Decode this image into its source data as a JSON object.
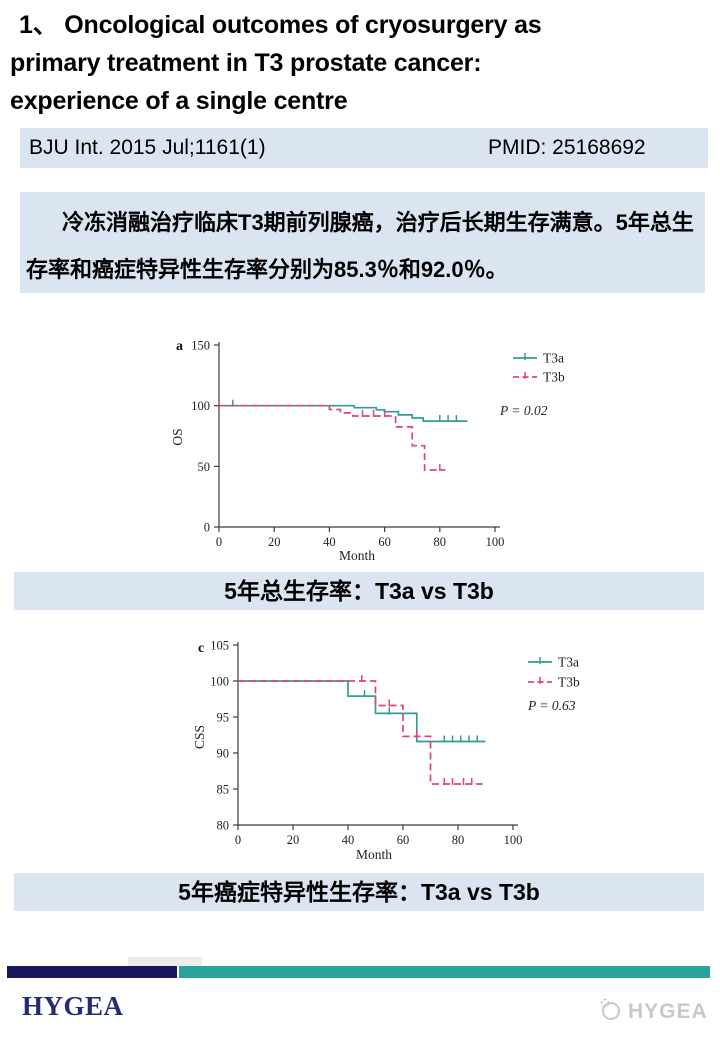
{
  "title": {
    "lines": [
      "1、 Oncological outcomes of cryosurgery as",
      "primary treatment in T3 prostate cancer:",
      "experience of a single centre"
    ]
  },
  "citation": {
    "journal": "BJU Int. 2015 Jul;1161(1)",
    "pmid": "PMID: 25168692"
  },
  "summary": {
    "text": "冷冻消融治疗临床T3期前列腺癌，治疗后长期生存满意。5年总生存率和癌症特异性生存率分别为85.3％和92.0％。"
  },
  "captions": {
    "os": "5年总生存率：T3a vs T3b",
    "css": "5年癌症特异性生存率：T3a vs T3b"
  },
  "colors": {
    "highlight_bg": "#dbe5f1",
    "t3a_teal": "#2f9e94",
    "t3b_pink": "#e5417d",
    "footer_navy": "#18185a",
    "footer_teal": "#2ba39c",
    "brand_navy": "#242b78",
    "watermark_gray": "#c9c9c9"
  },
  "chart_data": [
    {
      "type": "line",
      "subtype": "kaplan_meier_step",
      "panel_label": "a",
      "xlabel": "Month",
      "ylabel": "OS",
      "xlim": [
        0,
        100
      ],
      "ylim": [
        0,
        150
      ],
      "xticks": [
        0,
        20,
        40,
        60,
        80,
        100
      ],
      "yticks": [
        0,
        50,
        100,
        150
      ],
      "p_label": "P = 0.02",
      "legend_position": "upper-right-outside",
      "series": [
        {
          "name": "T3a",
          "color": "#2f9e94",
          "style": "solid",
          "points": [
            [
              0,
              100
            ],
            [
              49,
              100
            ],
            [
              49,
              98.3
            ],
            [
              57,
              98.3
            ],
            [
              57,
              96.6
            ],
            [
              60,
              96.6
            ],
            [
              60,
              95
            ],
            [
              65,
              95
            ],
            [
              65,
              92.4
            ],
            [
              70,
              92.4
            ],
            [
              70,
              89.8
            ],
            [
              74,
              89.8
            ],
            [
              74,
              87.3
            ],
            [
              90,
              87.3
            ]
          ],
          "censor_ticks": [
            [
              5,
              100
            ],
            [
              80,
              87.3
            ],
            [
              83,
              87.3
            ],
            [
              86,
              87.3
            ]
          ]
        },
        {
          "name": "T3b",
          "color": "#e5417d",
          "style": "dashed",
          "points": [
            [
              0,
              100
            ],
            [
              40,
              100
            ],
            [
              40,
              96.8
            ],
            [
              44,
              96.8
            ],
            [
              44,
              94
            ],
            [
              48.5,
              94
            ],
            [
              48.5,
              91.5
            ],
            [
              64,
              91.5
            ],
            [
              64,
              82.5
            ],
            [
              70,
              82.5
            ],
            [
              70,
              67
            ],
            [
              74.5,
              67
            ],
            [
              74.5,
              47
            ],
            [
              82,
              47
            ]
          ],
          "censor_ticks": [
            [
              52,
              91.5
            ],
            [
              56,
              91.5
            ],
            [
              60,
              91.5
            ],
            [
              80,
              47
            ]
          ]
        }
      ]
    },
    {
      "type": "line",
      "subtype": "kaplan_meier_step",
      "panel_label": "c",
      "xlabel": "Month",
      "ylabel": "CSS",
      "xlim": [
        0,
        100
      ],
      "ylim": [
        80,
        105
      ],
      "xticks": [
        0,
        20,
        40,
        60,
        80,
        100
      ],
      "yticks": [
        80,
        85,
        90,
        95,
        100,
        105
      ],
      "p_label": "P = 0.63",
      "legend_position": "upper-right-outside",
      "series": [
        {
          "name": "T3a",
          "color": "#2f9e94",
          "style": "solid",
          "points": [
            [
              0,
              100
            ],
            [
              40,
              100
            ],
            [
              40,
              97.9
            ],
            [
              50,
              97.9
            ],
            [
              50,
              95.5
            ],
            [
              65,
              95.5
            ],
            [
              65,
              91.6
            ],
            [
              90,
              91.6
            ]
          ],
          "censor_ticks": [
            [
              46,
              97.9
            ],
            [
              55,
              95.5
            ],
            [
              75,
              91.6
            ],
            [
              78,
              91.6
            ],
            [
              81,
              91.6
            ],
            [
              84,
              91.6
            ],
            [
              87,
              91.6
            ]
          ]
        },
        {
          "name": "T3b",
          "color": "#e5417d",
          "style": "dashed",
          "points": [
            [
              0,
              100
            ],
            [
              50,
              100
            ],
            [
              50,
              96.6
            ],
            [
              60,
              96.6
            ],
            [
              60,
              92.3
            ],
            [
              70,
              92.3
            ],
            [
              70,
              85.7
            ],
            [
              89,
              85.7
            ]
          ],
          "censor_ticks": [
            [
              45,
              100
            ],
            [
              55,
              96.6
            ],
            [
              65,
              92.3
            ],
            [
              75,
              85.7
            ],
            [
              78,
              85.7
            ],
            [
              82,
              85.7
            ],
            [
              85,
              85.7
            ]
          ]
        }
      ]
    }
  ],
  "footer": {
    "brand": "HYGEA",
    "watermark": "HYGEA"
  }
}
